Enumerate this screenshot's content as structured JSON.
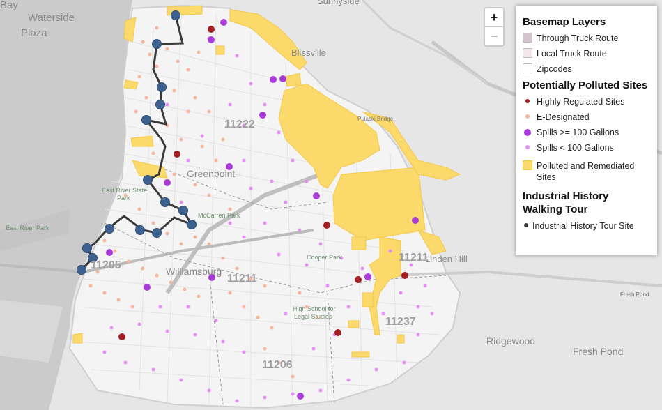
{
  "zoom": {
    "in_label": "+",
    "out_label": "−"
  },
  "legend": {
    "basemap_title": "Basemap Layers",
    "basemap_items": [
      {
        "label": "Through Truck Route",
        "color": "#d5c4cf"
      },
      {
        "label": "Local Truck Route",
        "color": "#f4e6ec"
      },
      {
        "label": "Zipcodes",
        "color": "#ffffff"
      }
    ],
    "polluted_title": "Potentially Polluted Sites",
    "polluted_items": [
      {
        "label": "Highly Regulated Sites",
        "color": "#a31e22"
      },
      {
        "label": "E-Designated",
        "color": "#f6b59c"
      },
      {
        "label": "Spills >= 100 Gallons",
        "color": "#a93cd9"
      },
      {
        "label": "Spills < 100 Gallons",
        "color": "#e58ef3"
      }
    ],
    "remediated_label": "Polluted and Remediated Sites",
    "remediated_color": "#fbd96b",
    "tour_title": "Industrial History Walking Tour",
    "tour_item": "Industrial History Tour Site",
    "tour_color": "#3e6290"
  },
  "map_labels": {
    "waterside": "Waterside",
    "plaza": "Plaza",
    "bay": "Bay",
    "sunnyside": "Sunnyside",
    "blissville": "Blissville",
    "pulaski_bridge": "Pulaski Bridge",
    "greenpoint": "Greenpoint",
    "east_river_state": "East River State",
    "park": "Park",
    "east_river_park": "East River Park",
    "mccarren_park": "McCarren Park",
    "williamsburg": "Williamsburg",
    "cooper_park": "Cooper Park",
    "hs_legal_1": "High School for",
    "hs_legal_2": "Legal Studies",
    "ridgewood": "Ridgewood",
    "fresh_pond": "Fresh Pond",
    "fresh_pond_road": "Fresh Pond",
    "union_hill": "Linden Hill",
    "zip_11222": "11222",
    "zip_11211_a": "11211",
    "zip_11211_b": "11211",
    "zip_11205": "11205",
    "zip_11237": "11237",
    "zip_11206": "11206"
  }
}
